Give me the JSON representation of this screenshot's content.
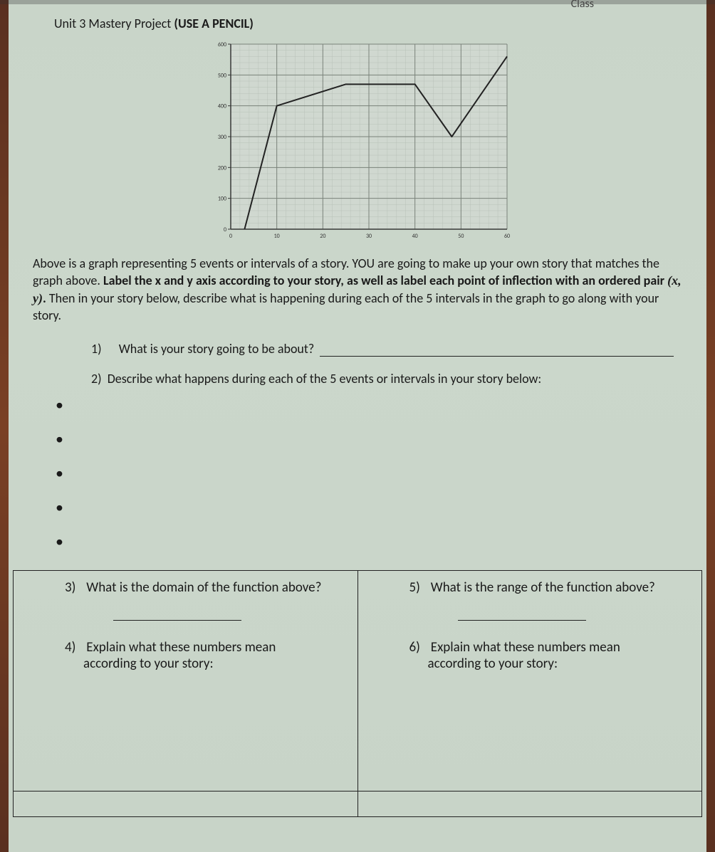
{
  "header": {
    "class_label": "Class",
    "title_plain": "Unit 3 Mastery Project ",
    "title_bold": "(USE A PENCIL)"
  },
  "chart": {
    "type": "line",
    "xlim": [
      0,
      60
    ],
    "ylim": [
      0,
      600
    ],
    "xtick_step": 10,
    "ytick_step": 100,
    "xtick_labels": [
      "0",
      "10",
      "20",
      "30",
      "40",
      "50",
      "60"
    ],
    "ytick_labels": [
      "0",
      "100",
      "200",
      "300",
      "400",
      "500",
      "600"
    ],
    "tick_fontsize": 8,
    "major_grid_color": "#7a827a",
    "minor_grid_color": "#b4bcb4",
    "minor_divisions": 5,
    "background_color": "#d0d8d0",
    "axis_color": "#383838",
    "line_color": "#222222",
    "line_width": 2,
    "points": [
      {
        "x": 3,
        "y": 0
      },
      {
        "x": 10,
        "y": 400
      },
      {
        "x": 25,
        "y": 470
      },
      {
        "x": 40,
        "y": 470
      },
      {
        "x": 48,
        "y": 300
      },
      {
        "x": 60,
        "y": 560
      }
    ]
  },
  "description": {
    "part1": "Above is a graph representing 5 events or intervals of a story. YOU are going to make up your own story that matches the graph above. ",
    "bold1": "Label the x and y axis according to your story, as well as label each point of inflection with an ordered pair ",
    "math": "(x, y)",
    "bold1_end": ".",
    "part2": " Then in your story below, describe what is happening during each of the 5 intervals in the graph to go along with your story."
  },
  "questions": {
    "q1_num": "1)",
    "q1_text": "What is your story going to be about?",
    "q2_num": "2)",
    "q2_text": "Describe what happens during each of the 5 events or intervals in your story below:",
    "q3_num": "3)",
    "q3_text": "What is the domain of the function above?",
    "q4_num": "4)",
    "q4_text": "Explain what these numbers mean according to your story:",
    "q5_num": "5)",
    "q5_text": "What is the range of the function above?",
    "q6_num": "6)",
    "q6_text": "Explain what these numbers mean according to your story:"
  },
  "bullet_count": 5
}
